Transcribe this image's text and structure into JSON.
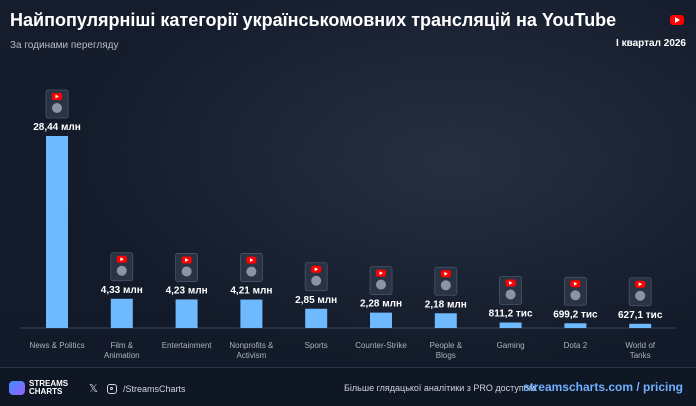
{
  "header": {
    "title": "Найпопулярніші категорії українськомовних трансляцій на YouTube",
    "subtitle": "За годинами перегляду",
    "period": "I квартал 2026",
    "brand_color": "#ff0000"
  },
  "chart_data": {
    "type": "bar",
    "title": "Найпопулярніші категорії українськомовних трансляцій на YouTube",
    "subtitle": "За годинами перегляду",
    "categories": [
      "News & Politics",
      "Film & Animation",
      "Entertainment",
      "Nonprofits & Activism",
      "Sports",
      "Counter-Strike",
      "People & Blogs",
      "Gaming",
      "Dota 2",
      "World of Tanks"
    ],
    "category_lines": [
      [
        "News & Politics"
      ],
      [
        "Film &",
        "Animation"
      ],
      [
        "Entertainment"
      ],
      [
        "Nonprofits &",
        "Activism"
      ],
      [
        "Sports"
      ],
      [
        "Counter-Strike"
      ],
      [
        "People &",
        "Blogs"
      ],
      [
        "Gaming"
      ],
      [
        "Dota 2"
      ],
      [
        "World of",
        "Tanks"
      ]
    ],
    "values": [
      28440000,
      4330000,
      4230000,
      4210000,
      2850000,
      2280000,
      2180000,
      811200,
      699200,
      627100
    ],
    "value_labels": [
      "28,44 млн",
      "4,33 млн",
      "4,23 млн",
      "4,21 млн",
      "2,85 млн",
      "2,28 млн",
      "2,18 млн",
      "811,2 тис",
      "699,2 тис",
      "627,1 тис"
    ],
    "icons": [
      "news-politics-icon",
      "film-animation-icon",
      "entertainment-icon",
      "nonprofits-activism-icon",
      "sports-icon",
      "counter-strike-icon",
      "people-blogs-icon",
      "gaming-icon",
      "dota-2-icon",
      "world-of-tanks-icon"
    ],
    "xlabel": "",
    "ylabel": "",
    "ylim": [
      0,
      28440000
    ],
    "grid": false,
    "bar_color": "#6fb9ff"
  },
  "footer": {
    "brand": "STREAMS CHARTS",
    "handle": "/StreamsCharts",
    "promo": "Більше глядацької аналітики з PRO доступом:",
    "site": "streamscharts.com / pricing",
    "x_icon": "x-icon",
    "instagram_icon": "instagram-icon"
  }
}
